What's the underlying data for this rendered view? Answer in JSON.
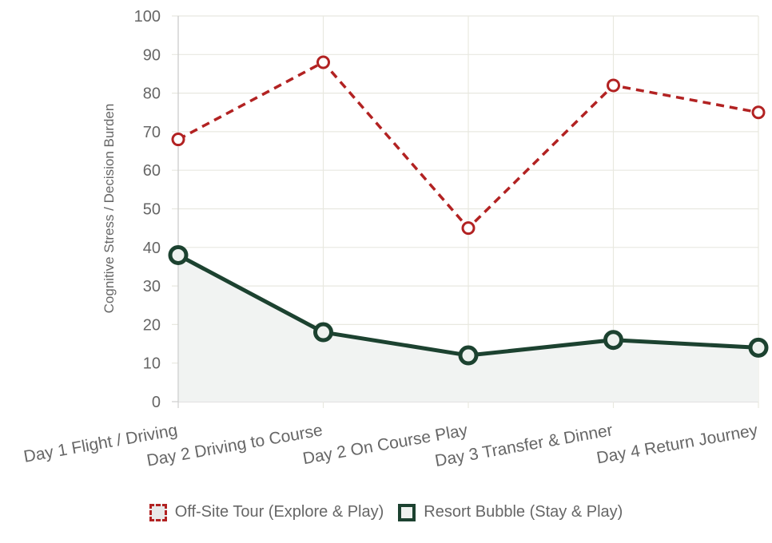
{
  "chart_data": {
    "type": "line",
    "categories": [
      "Day 1 Flight / Driving",
      "Day 2 Driving to Course",
      "Day 2 On Course Play",
      "Day 3 Transfer & Dinner",
      "Day 4 Return Journey"
    ],
    "series": [
      {
        "name": "Off-Site Tour (Explore & Play)",
        "values": [
          68,
          88,
          45,
          82,
          75
        ],
        "color": "#b22222",
        "style": "dashed"
      },
      {
        "name": "Resort Bubble (Stay & Play)",
        "values": [
          38,
          18,
          12,
          16,
          14
        ],
        "color": "#1c4230",
        "style": "solid",
        "fill": true
      }
    ],
    "ylabel": "Cognitive Stress / Decision Burden",
    "xlabel": "",
    "ylim": [
      0,
      100
    ],
    "yticks": [
      0,
      10,
      20,
      30,
      40,
      50,
      60,
      70,
      80,
      90,
      100
    ],
    "grid": true,
    "legend": "bottom"
  }
}
